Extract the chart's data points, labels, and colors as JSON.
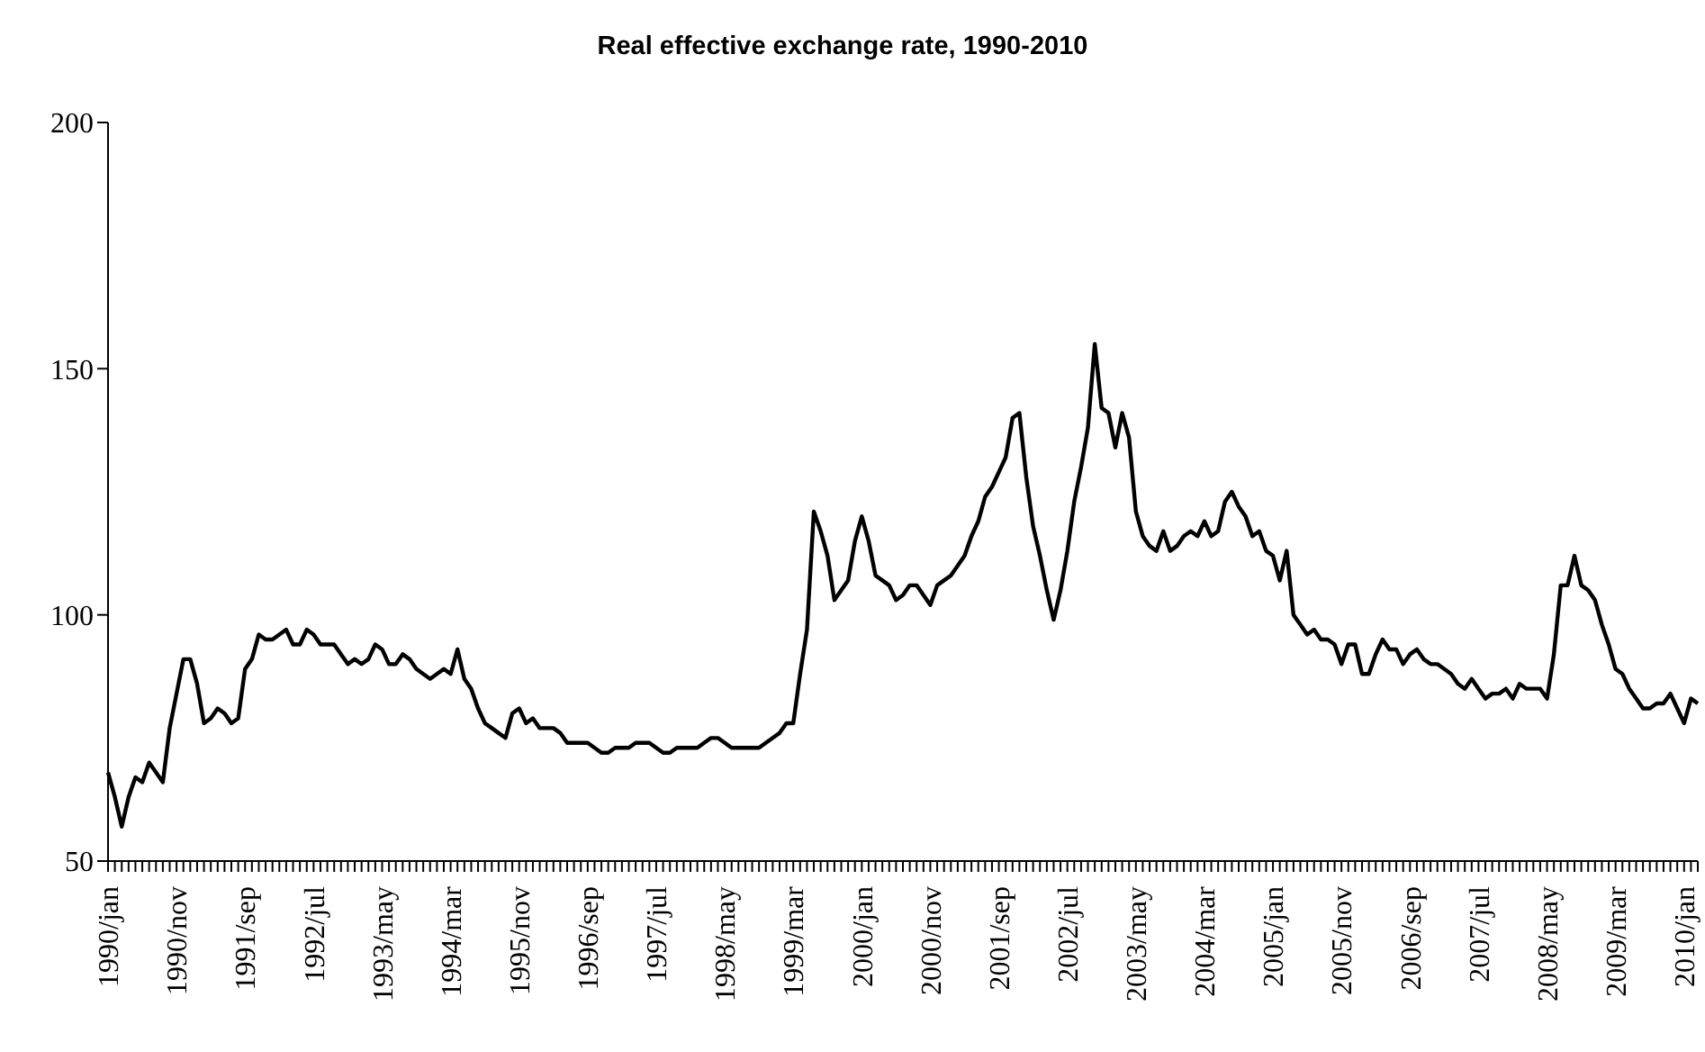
{
  "chart_data": {
    "type": "line",
    "title": "Real effective exchange rate, 1990-2010",
    "categories": [
      "1990/jan",
      null,
      null,
      null,
      null,
      null,
      null,
      null,
      null,
      null,
      "1990/nov",
      null,
      null,
      null,
      null,
      null,
      null,
      null,
      null,
      null,
      "1991/sep",
      null,
      null,
      null,
      null,
      null,
      null,
      null,
      null,
      null,
      "1992/jul",
      null,
      null,
      null,
      null,
      null,
      null,
      null,
      null,
      null,
      "1993/may",
      null,
      null,
      null,
      null,
      null,
      null,
      null,
      null,
      null,
      "1994/mar",
      null,
      null,
      null,
      null,
      null,
      null,
      null,
      null,
      null,
      "1995/nov",
      null,
      null,
      null,
      null,
      null,
      null,
      null,
      null,
      null,
      "1996/sep",
      null,
      null,
      null,
      null,
      null,
      null,
      null,
      null,
      null,
      "1997/jul",
      null,
      null,
      null,
      null,
      null,
      null,
      null,
      null,
      null,
      "1998/may",
      null,
      null,
      null,
      null,
      null,
      null,
      null,
      null,
      null,
      "1999/mar",
      null,
      null,
      null,
      null,
      null,
      null,
      null,
      null,
      null,
      "2000/jan",
      null,
      null,
      null,
      null,
      null,
      null,
      null,
      null,
      null,
      "2000/nov",
      null,
      null,
      null,
      null,
      null,
      null,
      null,
      null,
      null,
      "2001/sep",
      null,
      null,
      null,
      null,
      null,
      null,
      null,
      null,
      null,
      "2002/jul",
      null,
      null,
      null,
      null,
      null,
      null,
      null,
      null,
      null,
      "2003/may",
      null,
      null,
      null,
      null,
      null,
      null,
      null,
      null,
      null,
      "2004/mar",
      null,
      null,
      null,
      null,
      null,
      null,
      null,
      null,
      null,
      "2005/jan",
      null,
      null,
      null,
      null,
      null,
      null,
      null,
      null,
      null,
      "2005/nov",
      null,
      null,
      null,
      null,
      null,
      null,
      null,
      null,
      null,
      "2006/sep",
      null,
      null,
      null,
      null,
      null,
      null,
      null,
      null,
      null,
      "2007/jul",
      null,
      null,
      null,
      null,
      null,
      null,
      null,
      null,
      null,
      "2008/may",
      null,
      null,
      null,
      null,
      null,
      null,
      null,
      null,
      null,
      "2009/mar",
      null,
      null,
      null,
      null,
      null,
      null,
      null,
      null,
      null,
      "2010/jan",
      null,
      null
    ],
    "values": [
      68,
      63,
      57,
      63,
      67,
      66,
      70,
      68,
      66,
      77,
      84,
      91,
      91,
      86,
      78,
      79,
      81,
      80,
      78,
      79,
      89,
      91,
      96,
      95,
      95,
      96,
      97,
      94,
      94,
      97,
      96,
      94,
      94,
      94,
      92,
      90,
      91,
      90,
      91,
      94,
      93,
      90,
      90,
      92,
      91,
      89,
      88,
      87,
      88,
      89,
      88,
      93,
      87,
      85,
      81,
      78,
      77,
      76,
      75,
      80,
      81,
      78,
      79,
      77,
      77,
      77,
      76,
      74,
      74,
      74,
      74,
      73,
      72,
      72,
      73,
      73,
      73,
      74,
      74,
      74,
      73,
      72,
      72,
      73,
      73,
      73,
      73,
      74,
      75,
      75,
      74,
      73,
      73,
      73,
      73,
      73,
      74,
      75,
      76,
      78,
      78,
      88,
      97,
      121,
      117,
      112,
      103,
      105,
      107,
      115,
      120,
      115,
      108,
      107,
      106,
      103,
      104,
      106,
      106,
      104,
      102,
      106,
      107,
      108,
      110,
      112,
      116,
      119,
      124,
      126,
      129,
      132,
      140,
      141,
      128,
      118,
      112,
      105,
      99,
      105,
      113,
      123,
      130,
      138,
      155,
      142,
      141,
      134,
      141,
      136,
      121,
      116,
      114,
      113,
      117,
      113,
      114,
      116,
      117,
      116,
      119,
      116,
      117,
      123,
      125,
      122,
      120,
      116,
      117,
      113,
      112,
      107,
      113,
      100,
      98,
      96,
      97,
      95,
      95,
      94,
      90,
      94,
      94,
      88,
      88,
      92,
      95,
      93,
      93,
      90,
      92,
      93,
      91,
      90,
      90,
      89,
      88,
      86,
      85,
      87,
      85,
      83,
      84,
      84,
      85,
      83,
      86,
      85,
      85,
      85,
      83,
      92,
      106,
      106,
      112,
      106,
      105,
      103,
      98,
      94,
      89,
      88,
      85,
      83,
      81,
      81,
      82,
      82,
      84,
      81,
      78,
      83,
      82
    ],
    "color": "#000000",
    "line_style": "solid",
    "ylim": [
      50,
      200
    ],
    "yticks": [
      50,
      100,
      150,
      200
    ]
  }
}
